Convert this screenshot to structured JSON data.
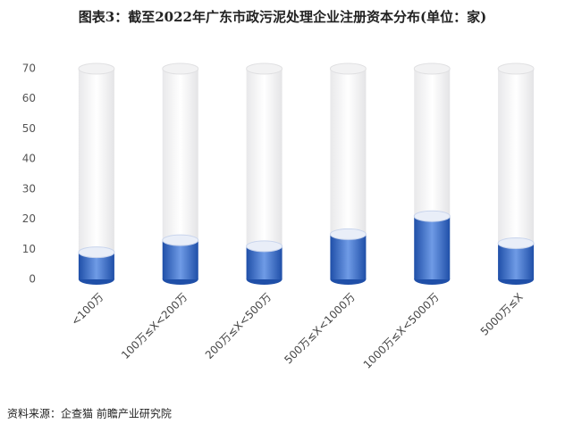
{
  "chart_data": {
    "type": "bar",
    "title": "图表3：截至2022年广东市政污泥处理企业注册资本分布(单位：家)",
    "categories": [
      "<100万",
      "100万≤X<200万",
      "200万≤X<500万",
      "500万≤X<1000万",
      "1000万≤X<5000万",
      "5000万≤X"
    ],
    "values": [
      9,
      13,
      11,
      15,
      21,
      12
    ],
    "color": "#2a5cb8",
    "ylim": [
      0,
      70
    ],
    "yticks": [
      0,
      10,
      20,
      30,
      40,
      50,
      60,
      70
    ],
    "grid": false,
    "source": "资料来源：企查猫 前瞻产业研究院"
  }
}
